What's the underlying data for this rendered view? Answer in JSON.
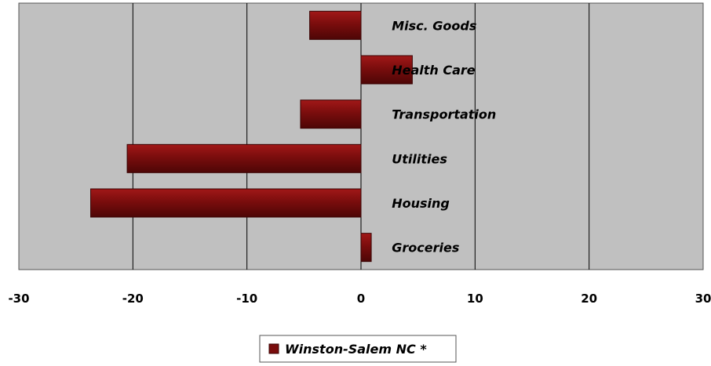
{
  "chart_data": {
    "type": "bar",
    "orientation": "horizontal",
    "categories": [
      "Misc. Goods",
      "Health Care",
      "Transportation",
      "Utilities",
      "Housing",
      "Groceries"
    ],
    "series": [
      {
        "name": "Winston-Salem NC *",
        "values": [
          -4.5,
          4.5,
          -5.3,
          -20.5,
          -23.7,
          0.9
        ]
      }
    ],
    "xlim": [
      -30,
      30
    ],
    "x_ticks": [
      -30,
      -20,
      -10,
      0,
      10,
      20,
      30
    ],
    "grid": "vertical",
    "legend_position": "bottom-center",
    "colors": {
      "bar": "#7a0d0d",
      "plot_bg": "#c0c0c0",
      "grid": "#000000"
    }
  }
}
